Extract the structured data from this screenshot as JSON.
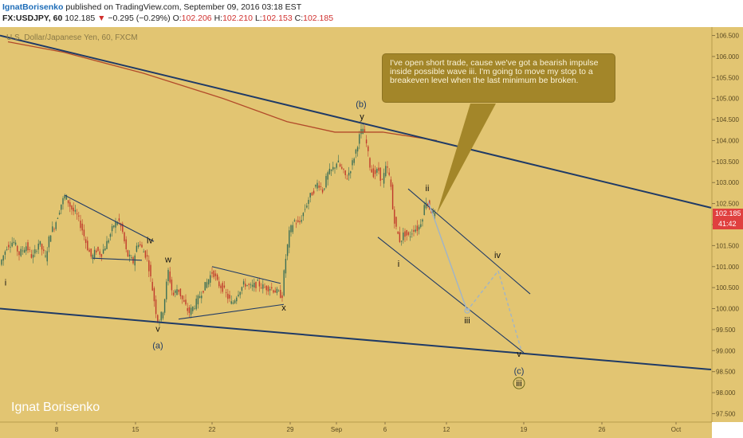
{
  "header": {
    "author": "IgnatBorisenko",
    "published": " published on TradingView.com, September 09, 2016 03:18 EST",
    "symbol": "FX:USDJPY, 60",
    "last": "102.185",
    "change": "−0.295 (−0.29%)",
    "o_label": "O:",
    "o": "102.206",
    "h_label": "H:",
    "h": "102.210",
    "l_label": "L:",
    "l": "102.153",
    "c_label": "C:",
    "c": "102.185"
  },
  "symbol_title": "U.S. Dollar/Japanese Yen, 60, FXCM",
  "annotation_text": "I've open short trade, cause we've got a bearish impulse inside possible wave iii. I'm going to move my stop to a breakeven level when the last minimum be broken.",
  "price_tag": "102.185",
  "time_tag": "41:42",
  "watermark": "Ignat Borisenko",
  "colors": {
    "background": "#e2c572",
    "candle_up": "#3a6e55",
    "candle_down": "#c0392b",
    "trendline": "#1f3a66",
    "ma": "#b24a2a",
    "callout": "#a38629",
    "projection": "#9fb4c8"
  },
  "chart_data": {
    "type": "candlestick",
    "ylim": [
      97.3,
      106.7
    ],
    "y_ticks": [
      "106.500",
      "106.000",
      "105.500",
      "105.000",
      "104.500",
      "104.000",
      "103.500",
      "103.000",
      "102.500",
      "102.000",
      "101.500",
      "101.000",
      "100.500",
      "100.000",
      "99.500",
      "99.000",
      "98.500",
      "98.000",
      "97.500"
    ],
    "x_ticks": [
      "8",
      "15",
      "22",
      "29",
      "Sep",
      "6",
      "12",
      "19",
      "26",
      "Oct"
    ],
    "path": [
      [
        0,
        101.0
      ],
      [
        10,
        101.5
      ],
      [
        18,
        101.6
      ],
      [
        25,
        101.3
      ],
      [
        34,
        101.5
      ],
      [
        42,
        101.2
      ],
      [
        50,
        101.6
      ],
      [
        58,
        101.2
      ],
      [
        64,
        101.8
      ],
      [
        70,
        102.0
      ],
      [
        78,
        102.5
      ],
      [
        83,
        102.7
      ],
      [
        90,
        102.4
      ],
      [
        98,
        102.2
      ],
      [
        104,
        101.9
      ],
      [
        110,
        101.5
      ],
      [
        116,
        101.2
      ],
      [
        122,
        101.4
      ],
      [
        128,
        101.3
      ],
      [
        136,
        101.6
      ],
      [
        144,
        102.0
      ],
      [
        150,
        102.1
      ],
      [
        155,
        101.8
      ],
      [
        160,
        101.3
      ],
      [
        168,
        101.1
      ],
      [
        174,
        101.6
      ],
      [
        180,
        101.4
      ],
      [
        186,
        101.2
      ],
      [
        192,
        100.5
      ],
      [
        197,
        99.9
      ],
      [
        200,
        99.65
      ],
      [
        206,
        100.0
      ],
      [
        212,
        100.9
      ],
      [
        218,
        100.3
      ],
      [
        224,
        100.5
      ],
      [
        230,
        100.2
      ],
      [
        238,
        99.9
      ],
      [
        246,
        100.1
      ],
      [
        254,
        100.4
      ],
      [
        260,
        100.6
      ],
      [
        268,
        100.9
      ],
      [
        274,
        100.6
      ],
      [
        280,
        100.5
      ],
      [
        286,
        100.3
      ],
      [
        292,
        100.1
      ],
      [
        300,
        100.4
      ],
      [
        308,
        100.6
      ],
      [
        316,
        100.5
      ],
      [
        324,
        100.6
      ],
      [
        332,
        100.5
      ],
      [
        340,
        100.5
      ],
      [
        348,
        100.4
      ],
      [
        355,
        100.3
      ],
      [
        358,
        101.0
      ],
      [
        364,
        101.8
      ],
      [
        370,
        102.1
      ],
      [
        376,
        102.0
      ],
      [
        382,
        102.3
      ],
      [
        388,
        102.6
      ],
      [
        394,
        102.8
      ],
      [
        400,
        103.0
      ],
      [
        406,
        102.8
      ],
      [
        412,
        103.2
      ],
      [
        418,
        103.3
      ],
      [
        424,
        103.5
      ],
      [
        430,
        103.3
      ],
      [
        436,
        103.1
      ],
      [
        442,
        103.4
      ],
      [
        448,
        103.8
      ],
      [
        452,
        104.1
      ],
      [
        456,
        104.3
      ],
      [
        460,
        104.0
      ],
      [
        466,
        103.3
      ],
      [
        470,
        103.2
      ],
      [
        476,
        103.3
      ],
      [
        480,
        103.0
      ],
      [
        486,
        103.4
      ],
      [
        491,
        103.0
      ],
      [
        494,
        102.3
      ],
      [
        498,
        101.9
      ],
      [
        503,
        101.6
      ],
      [
        508,
        101.8
      ],
      [
        514,
        101.7
      ],
      [
        520,
        101.9
      ],
      [
        526,
        101.9
      ],
      [
        531,
        102.2
      ],
      [
        535,
        102.6
      ],
      [
        540,
        102.4
      ],
      [
        546,
        102.2
      ]
    ],
    "ma_path": [
      [
        10,
        106.35
      ],
      [
        80,
        106.1
      ],
      [
        180,
        105.6
      ],
      [
        280,
        105.0
      ],
      [
        360,
        104.45
      ],
      [
        420,
        104.2
      ],
      [
        480,
        104.2
      ],
      [
        548,
        104.0
      ]
    ],
    "trendlines": [
      {
        "from": [
          0,
          106.5
        ],
        "to": [
          892,
          102.4
        ]
      },
      {
        "from": [
          0,
          100.0
        ],
        "to": [
          892,
          98.55
        ]
      },
      {
        "from": [
          81,
          102.7
        ],
        "to": [
          193,
          101.6
        ]
      },
      {
        "from": [
          116,
          101.2
        ],
        "to": [
          178,
          101.15
        ]
      },
      {
        "from": [
          266,
          101.0
        ],
        "to": [
          352,
          100.6
        ]
      },
      {
        "from": [
          224,
          99.75
        ],
        "to": [
          356,
          100.1
        ]
      },
      {
        "from": [
          512,
          102.85
        ],
        "to": [
          665,
          100.35
        ]
      },
      {
        "from": [
          474,
          101.7
        ],
        "to": [
          657,
          98.95
        ]
      }
    ],
    "projection": [
      [
        537,
        102.55
      ],
      [
        586,
        99.95
      ],
      [
        625,
        100.9
      ],
      [
        654,
        99.0
      ]
    ],
    "wave_labels": [
      {
        "text": "i",
        "x": 7,
        "y": 100.55
      },
      {
        "text": "iv",
        "x": 188,
        "y": 101.55
      },
      {
        "text": "w",
        "x": 211,
        "y": 101.1
      },
      {
        "text": "v",
        "x": 198,
        "y": 99.45
      },
      {
        "text": "(a)",
        "x": 198,
        "y": 99.05
      },
      {
        "text": "x",
        "x": 356,
        "y": 99.95
      },
      {
        "text": "(b)",
        "x": 453,
        "y": 104.8
      },
      {
        "text": "y",
        "x": 454,
        "y": 104.5
      },
      {
        "text": "ii",
        "x": 536,
        "y": 102.8
      },
      {
        "text": "i",
        "x": 500,
        "y": 101.0
      },
      {
        "text": "iii",
        "x": 586,
        "y": 99.65
      },
      {
        "text": "iv",
        "x": 624,
        "y": 101.2
      },
      {
        "text": "v",
        "x": 651,
        "y": 98.85
      },
      {
        "text": "(c)",
        "x": 651,
        "y": 98.45
      },
      {
        "text": "iii",
        "x": 651,
        "y": 98.15
      }
    ]
  }
}
